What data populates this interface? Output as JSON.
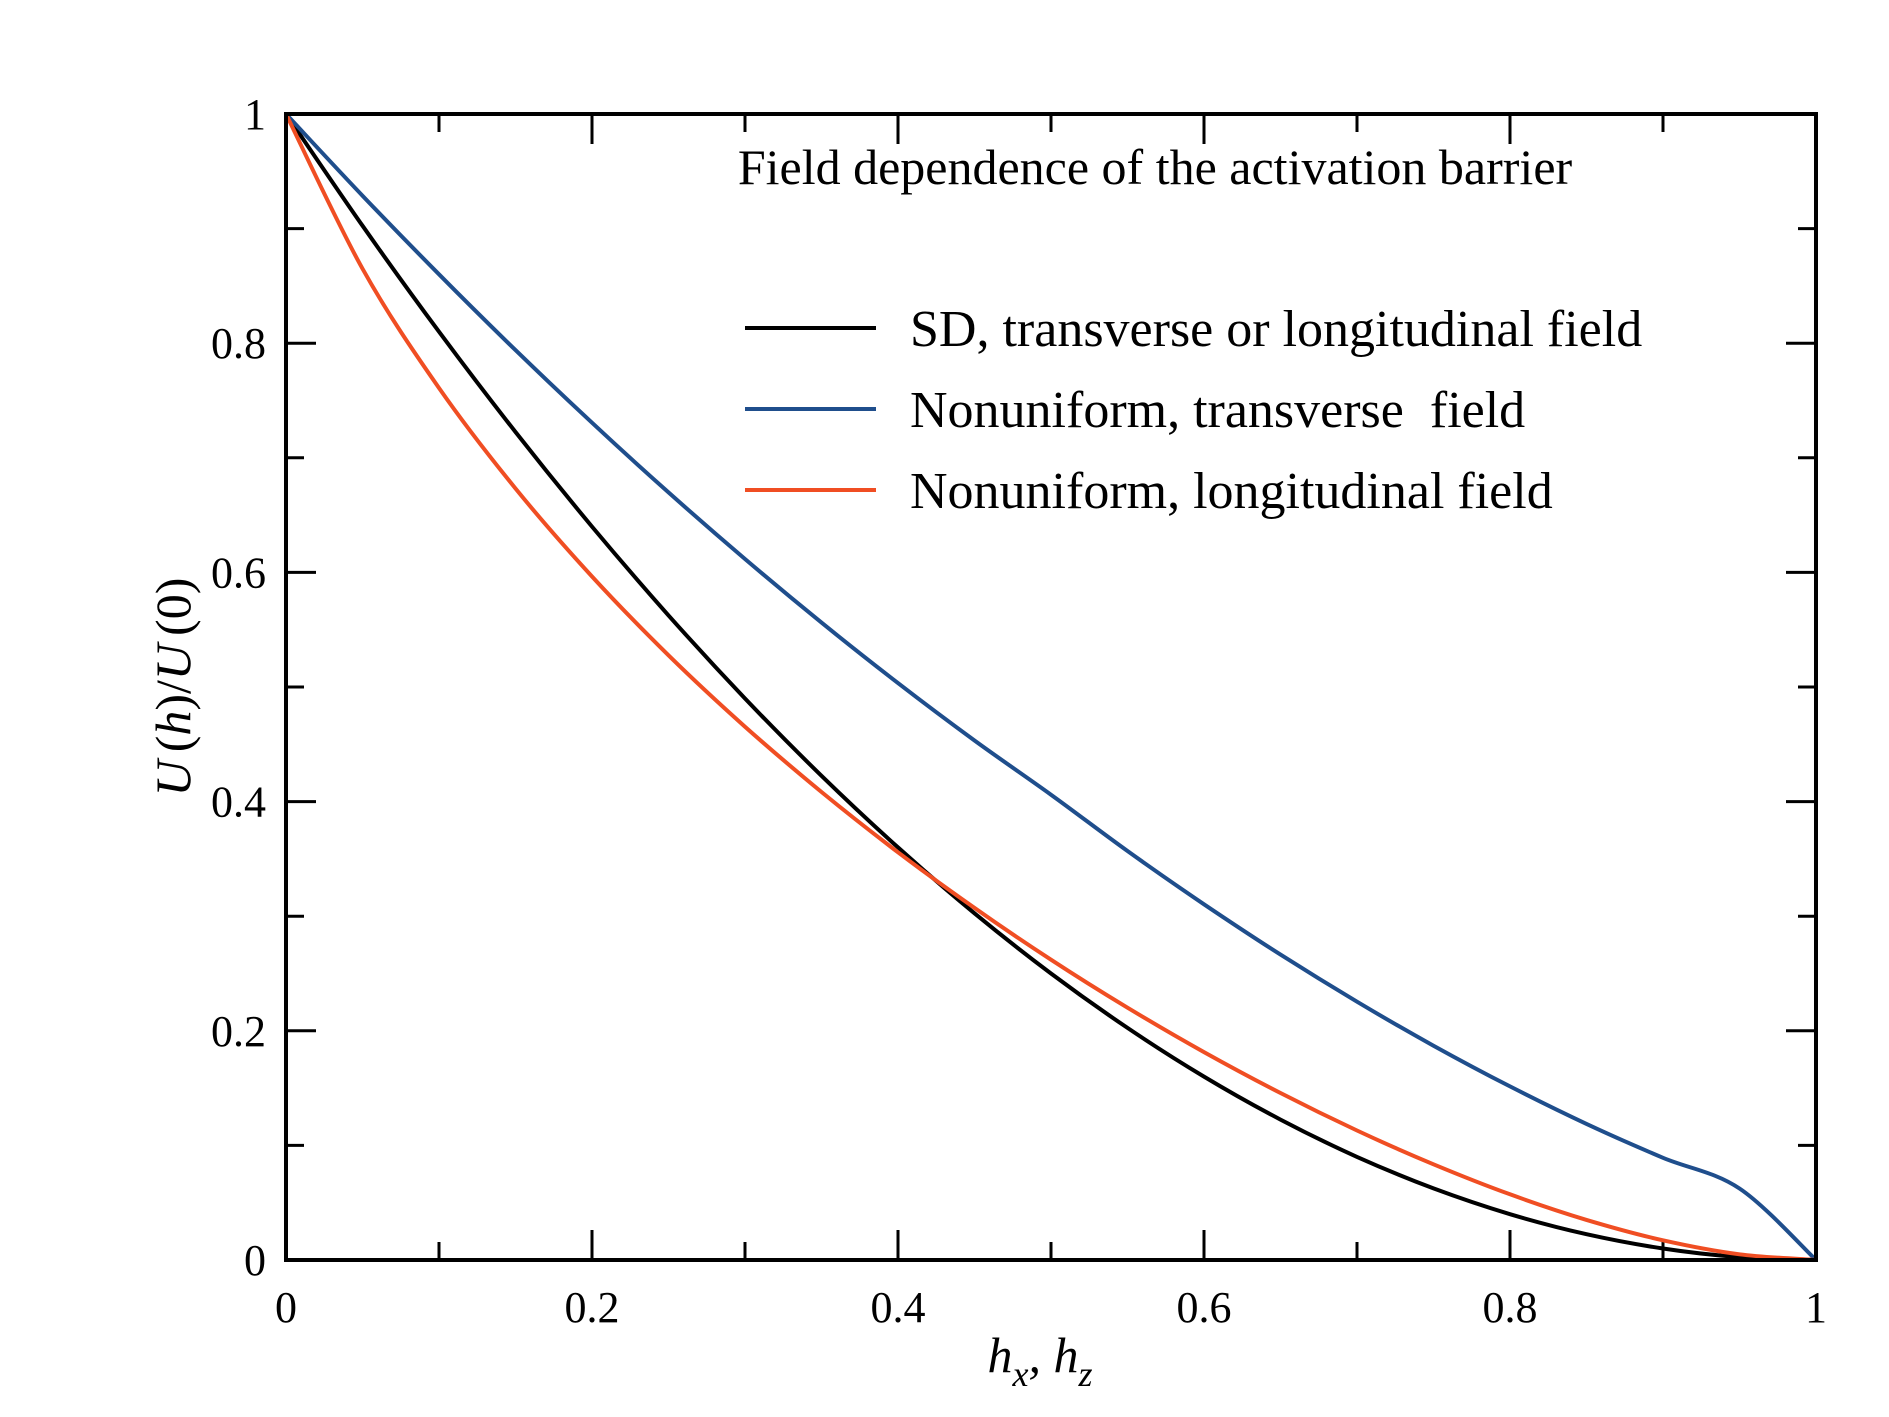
{
  "chart_data": {
    "type": "line",
    "title": "Field dependence of the activation barrier",
    "xlabel": "h_x, h_z",
    "ylabel": "U(h)/U(0)",
    "xlabel_parts": {
      "h1": "h",
      "s1": "x",
      "sep": ", ",
      "h2": "h",
      "s2": "z"
    },
    "ylabel_parts": {
      "u1": "U",
      "h": "h",
      "u2": "U",
      "zero": "0"
    },
    "xlim": [
      0,
      1
    ],
    "ylim": [
      0,
      1
    ],
    "x_ticks": [
      "0",
      "0.2",
      "0.4",
      "0.6",
      "0.8",
      "1"
    ],
    "y_ticks": [
      "0",
      "0.2",
      "0.4",
      "0.6",
      "0.8",
      "1"
    ],
    "grid": false,
    "legend_position": "top-right",
    "x": [
      0,
      0.05,
      0.1,
      0.15,
      0.2,
      0.25,
      0.3,
      0.35,
      0.4,
      0.45,
      0.5,
      0.55,
      0.6,
      0.65,
      0.7,
      0.75,
      0.8,
      0.85,
      0.9,
      0.95,
      1.0
    ],
    "series": [
      {
        "name": "SD, transverse or longitudinal field",
        "color": "#000000",
        "values": [
          1.0,
          0.9025,
          0.81,
          0.7225,
          0.64,
          0.5625,
          0.49,
          0.4225,
          0.36,
          0.3025,
          0.25,
          0.2025,
          0.16,
          0.1225,
          0.09,
          0.0625,
          0.04,
          0.0225,
          0.01,
          0.0025,
          0.0
        ]
      },
      {
        "name": "Nonuniform, transverse  field",
        "color": "#1f4e8c",
        "values": [
          1.0,
          0.9287,
          0.8601,
          0.794,
          0.7306,
          0.6698,
          0.6117,
          0.5562,
          0.5034,
          0.4533,
          0.406,
          0.3569,
          0.3104,
          0.2665,
          0.2254,
          0.187,
          0.1515,
          0.1188,
          0.0892,
          0.0624,
          0.0
        ]
      },
      {
        "name": "Nonuniform, longitudinal field",
        "color": "#f04e23",
        "values": [
          1.0,
          0.865,
          0.7609,
          0.6732,
          0.5964,
          0.5277,
          0.4654,
          0.4084,
          0.3558,
          0.3072,
          0.262,
          0.2202,
          0.1814,
          0.1457,
          0.113,
          0.0835,
          0.0573,
          0.035,
          0.0172,
          0.005,
          0.0
        ]
      }
    ]
  }
}
